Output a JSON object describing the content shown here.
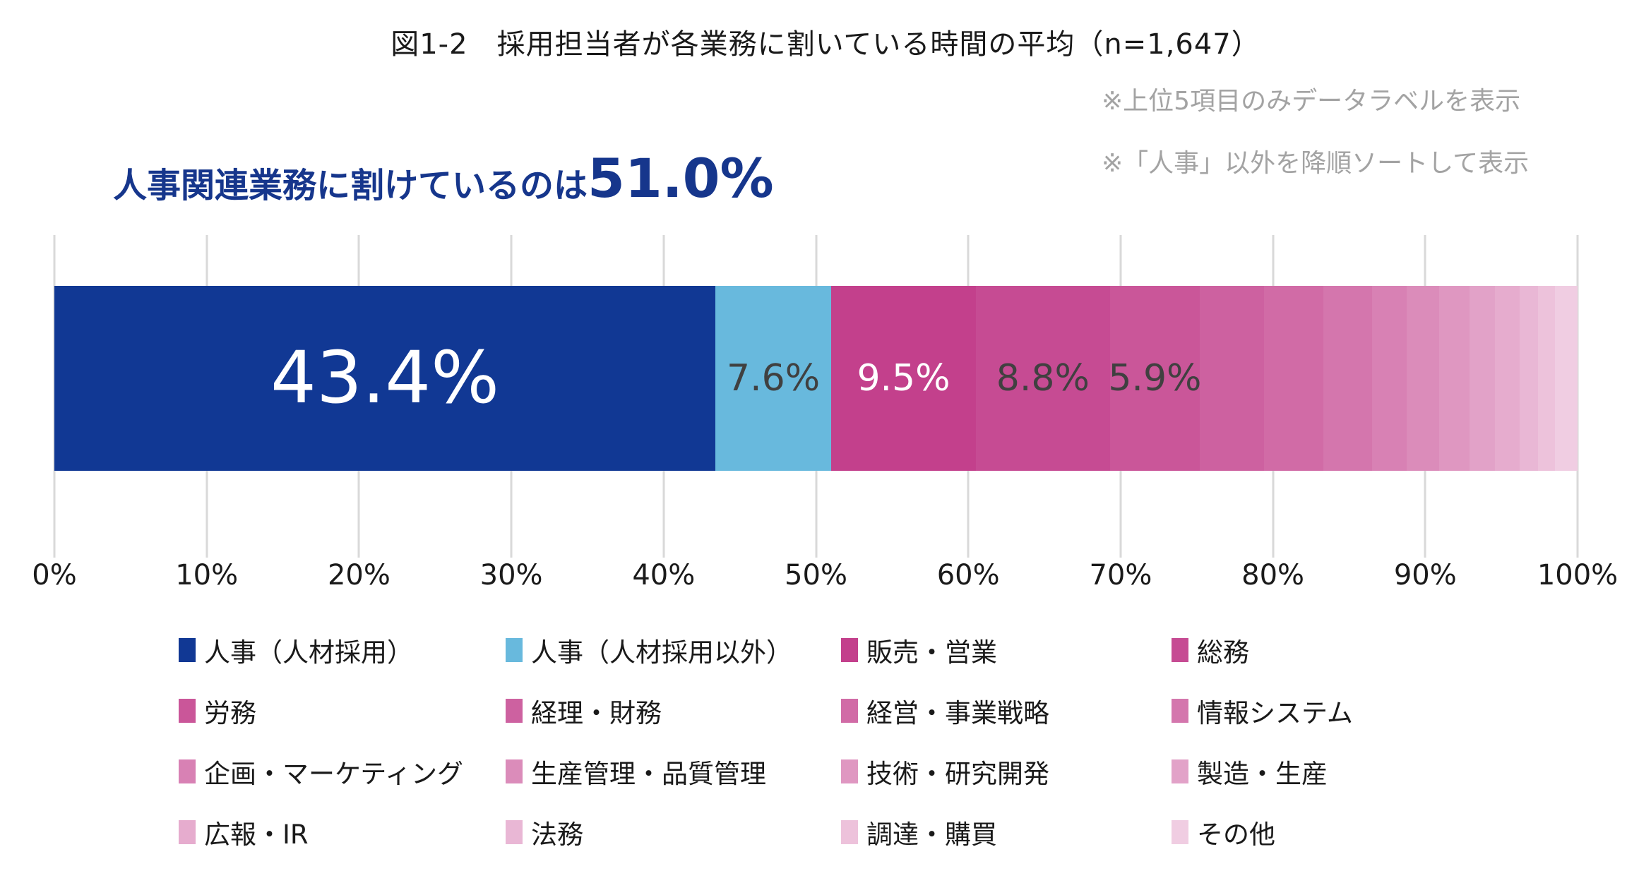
{
  "header": {
    "title": "図1-2　採用担当者が各業務に割いている時間の平均（n=1,647）",
    "notes": [
      "※上位5項目のみデータラベルを表示",
      "※「人事」以外を降順ソートして表示"
    ],
    "notes_color": "#a3a3a3"
  },
  "headline": {
    "text": "人事関連業務に割けているのは",
    "value": "51.0%",
    "color": "#16368c"
  },
  "chart_data": {
    "type": "bar",
    "stacked": true,
    "orientation": "horizontal",
    "title": "図1-2　採用担当者が各業務に割いている時間の平均（n=1,647）",
    "xlabel": "",
    "ylabel": "",
    "unit": "%",
    "axis_range": [
      0,
      100
    ],
    "x_tick_labels": [
      "0%",
      "10%",
      "20%",
      "30%",
      "40%",
      "50%",
      "60%",
      "70%",
      "80%",
      "90%",
      "100%"
    ],
    "grid": true,
    "gridline_color": "#d9d9d9",
    "legend_position": "bottom",
    "categories": [
      "人事（人材採用）",
      "人事（人材採用以外）",
      "販売・営業",
      "総務",
      "労務",
      "経理・財務",
      "経営・事業戦略",
      "情報システム",
      "企画・マーケティング",
      "生産管理・品質管理",
      "技術・研究開発",
      "製造・生産",
      "広報・IR",
      "法務",
      "調達・購買",
      "その他"
    ],
    "values": [
      43.4,
      7.6,
      9.5,
      8.8,
      5.9,
      4.2,
      3.9,
      3.2,
      2.3,
      2.1,
      2.0,
      1.7,
      1.6,
      1.2,
      1.1,
      1.5
    ],
    "data_labels": [
      "43.4%",
      "7.6%",
      "9.5%",
      "8.8%",
      "5.9%",
      "",
      "",
      "",
      "",
      "",
      "",
      "",
      "",
      "",
      "",
      ""
    ],
    "label_colors": [
      "#ffffff",
      "#404040",
      "#ffffff",
      "#404040",
      "#404040",
      "",
      "",
      "",
      "",
      "",
      "",
      "",
      "",
      "",
      "",
      ""
    ],
    "colors": [
      "#113894",
      "#68b9dd",
      "#c3408c",
      "#c64b93",
      "#ca5699",
      "#cd61a0",
      "#d16ba6",
      "#d476ad",
      "#d881b4",
      "#db8cba",
      "#df97c1",
      "#e2a2c8",
      "#e6acce",
      "#e9b7d5",
      "#edc2db",
      "#f0cde2"
    ]
  }
}
